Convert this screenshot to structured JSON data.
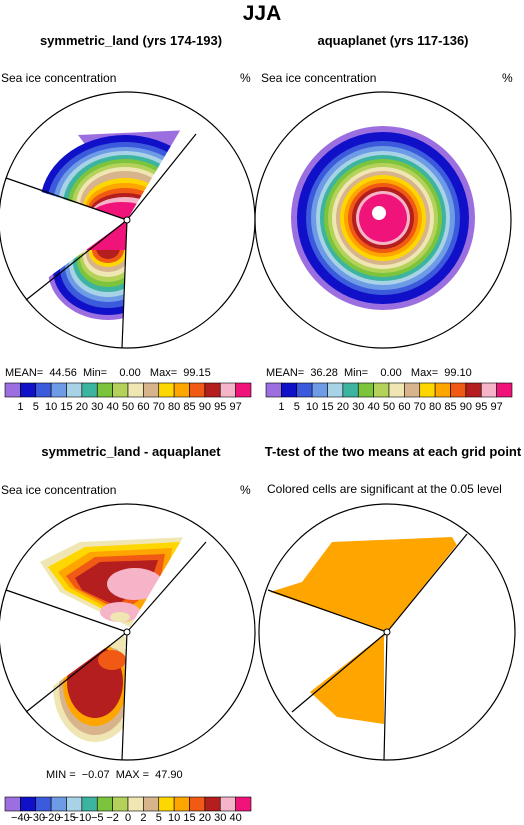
{
  "main_title": "JJA",
  "panels": [
    {
      "id": "p1",
      "title": "symmetric_land (yrs 174-193)",
      "variable": "Sea ice concentration",
      "units": "%",
      "stats": "MEAN=  44.56  Min=    0.00   Max=  99.15"
    },
    {
      "id": "p2",
      "title": "aquaplanet (yrs 117-136)",
      "variable": "Sea ice concentration",
      "units": "%",
      "stats": "MEAN=  36.28  Min=    0.00   Max=  99.10"
    },
    {
      "id": "p3",
      "title": "symmetric_land - aquaplanet",
      "variable": "Sea ice concentration",
      "units": "%",
      "stats": "MIN =  −0.07  MAX =  47.90"
    },
    {
      "id": "p4",
      "title": "T-test of the two means at each grid point",
      "subtitle": "Colored cells are significant at the 0.05 level"
    }
  ],
  "colorbar_top": {
    "colors": [
      "#9b6fe0",
      "#1010c8",
      "#3c5adc",
      "#6e9be6",
      "#a8d2e6",
      "#3cb4a0",
      "#7cc43c",
      "#b4d25a",
      "#f0e6b4",
      "#d7b48c",
      "#ffd700",
      "#ffa500",
      "#f05a14",
      "#b41e1e",
      "#f5b4c8",
      "#f0147a"
    ],
    "ticks": [
      "1",
      "5",
      "10",
      "15",
      "20",
      "30",
      "40",
      "50",
      "60",
      "70",
      "80",
      "85",
      "90",
      "95",
      "97"
    ]
  },
  "colorbar_bottom": {
    "colors": [
      "#9b6fe0",
      "#1010c8",
      "#3c5adc",
      "#6e9be6",
      "#a8d2e6",
      "#3cb4a0",
      "#7cc43c",
      "#b4d25a",
      "#f0e6b4",
      "#d7b48c",
      "#ffd700",
      "#ffa500",
      "#f05a14",
      "#b41e1e",
      "#f5b4c8",
      "#f0147a"
    ],
    "ticks": [
      "−40",
      "−30",
      "−20",
      "−15",
      "−10",
      "−5",
      "−2",
      "0",
      "2",
      "5",
      "10",
      "15",
      "20",
      "30",
      "40"
    ]
  },
  "chart_data": [
    {
      "type": "heatmap",
      "title": "symmetric_land (yrs 174-193)",
      "variable": "Sea ice concentration",
      "units": "%",
      "mean": 44.56,
      "min": 0.0,
      "max": 99.15,
      "levels": [
        1,
        5,
        10,
        15,
        20,
        30,
        40,
        50,
        60,
        70,
        80,
        85,
        90,
        95,
        97
      ]
    },
    {
      "type": "heatmap",
      "title": "aquaplanet (yrs 117-136)",
      "variable": "Sea ice concentration",
      "units": "%",
      "mean": 36.28,
      "min": 0.0,
      "max": 99.1,
      "levels": [
        1,
        5,
        10,
        15,
        20,
        30,
        40,
        50,
        60,
        70,
        80,
        85,
        90,
        95,
        97
      ]
    },
    {
      "type": "heatmap",
      "title": "symmetric_land - aquaplanet",
      "variable": "Sea ice concentration",
      "units": "%",
      "min": -0.07,
      "max": 47.9,
      "levels": [
        -40,
        -30,
        -20,
        -15,
        -10,
        -5,
        -2,
        0,
        2,
        5,
        10,
        15,
        20,
        30,
        40
      ]
    },
    {
      "type": "heatmap",
      "title": "T-test of the two means at each grid point",
      "subtitle": "Colored cells are significant at the 0.05 level",
      "significance_level": 0.05,
      "significant_color": "#ffa500"
    }
  ]
}
